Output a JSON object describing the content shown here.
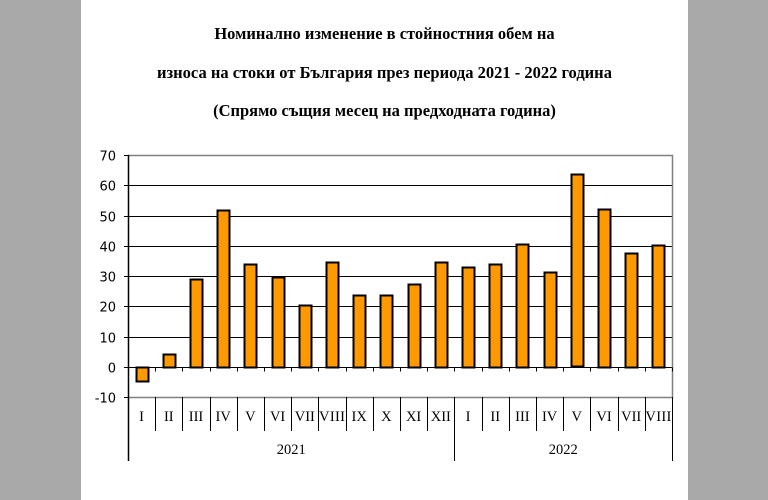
{
  "title": {
    "line1": "Номинално изменение в стойностния обем на",
    "line2": "износа на стоки от България през периода 2021 - 2022 година",
    "line3": "(Спрямо същия месец на предходната година)"
  },
  "colors": {
    "bar_fill": "#FF9900",
    "bar_stroke": "#000000",
    "gridline": "#000000",
    "plot_border": "#808080",
    "background_margin": "#A9A9A9"
  },
  "chart_data": {
    "type": "bar",
    "title": "Номинално изменение в стойностния обем на износа на стоки от България през периода 2021 - 2022 година (Спрямо същия месец на предходната година)",
    "xlabel": "",
    "ylabel": "",
    "ylim": [
      -10,
      70
    ],
    "yticks": [
      -10,
      0,
      10,
      20,
      30,
      40,
      50,
      60,
      70
    ],
    "grid": true,
    "legend": null,
    "categories": [
      "I",
      "II",
      "III",
      "IV",
      "V",
      "VI",
      "VII",
      "VIII",
      "IX",
      "X",
      "XI",
      "XII",
      "I",
      "II",
      "III",
      "IV",
      "V",
      "VI",
      "VII",
      "VIII"
    ],
    "groups": [
      {
        "label": "2021",
        "start": 0,
        "count": 12
      },
      {
        "label": "2022",
        "start": 12,
        "count": 8
      }
    ],
    "values": [
      -4.5,
      4.3,
      29.0,
      51.8,
      34.0,
      29.7,
      20.4,
      34.6,
      23.7,
      23.7,
      27.4,
      34.6,
      33.0,
      34.0,
      40.6,
      31.3,
      63.6,
      52.1,
      37.6,
      40.3
    ]
  }
}
